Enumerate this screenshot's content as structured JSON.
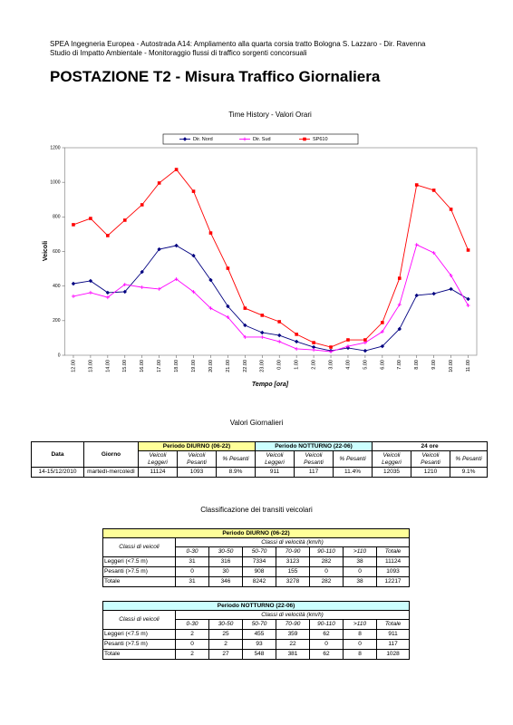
{
  "header": {
    "line1": "SPEA Ingegneria Europea - Autostrada A14: Ampliamento alla quarta corsia tratto Bologna S. Lazzaro - Dir. Ravenna",
    "line2": "Studio di Impatto Ambientale - Monitoraggio flussi di traffico sorgenti concorsuali",
    "title": "POSTAZIONE T2 - Misura Traffico Giornaliera"
  },
  "chart_data": {
    "type": "line",
    "title": "Time History - Valori Orari",
    "ylabel": "Veicoli",
    "xlabel": "Tempo [ora]",
    "categories": [
      "12.00",
      "13.00",
      "14.00",
      "15.00",
      "16.00",
      "17.00",
      "18.00",
      "19.00",
      "20.00",
      "21.00",
      "22.00",
      "23.00",
      "0.00",
      "1.00",
      "2.00",
      "3.00",
      "4.00",
      "5.00",
      "6.00",
      "7.00",
      "8.00",
      "9.00",
      "10.00",
      "11.00"
    ],
    "ylim": [
      0,
      1200
    ],
    "yticks": [
      0,
      200,
      400,
      600,
      800,
      1000,
      1200
    ],
    "series": [
      {
        "name": "Dir. Nord",
        "color": "#000080",
        "marker": "diamond",
        "values": [
          414,
          430,
          362,
          367,
          482,
          613,
          634,
          576,
          435,
          283,
          173,
          131,
          115,
          79,
          47,
          26,
          42,
          26,
          52,
          152,
          346,
          356,
          383,
          325
        ]
      },
      {
        "name": "Dir. Sud",
        "color": "#ff00ff",
        "marker": "cross",
        "values": [
          341,
          362,
          335,
          409,
          393,
          383,
          440,
          367,
          272,
          220,
          105,
          105,
          79,
          37,
          31,
          21,
          52,
          73,
          136,
          293,
          639,
          592,
          461,
          288
        ]
      },
      {
        "name": "SP610",
        "color": "#ff0000",
        "marker": "square",
        "values": [
          755,
          791,
          692,
          781,
          870,
          996,
          1074,
          948,
          707,
          503,
          272,
          231,
          194,
          121,
          73,
          47,
          89,
          89,
          189,
          445,
          985,
          954,
          844,
          608
        ]
      }
    ]
  },
  "daily": {
    "title": "Valori Giornalieri",
    "columns": [
      "Data",
      "Giorno"
    ],
    "periods": [
      "Periodo DIURNO (06-22)",
      "Periodo NOTTURNO (22-06)",
      "24 ore"
    ],
    "subcolumns": [
      "Veicoli Leggeri",
      "Veicoli Pesanti",
      "% Pesanti",
      "Veicoli Leggeri",
      "Veicoli Pesanti",
      "% Pesanti",
      "Veicoli Leggeri",
      "Veicoli Pesanti",
      "% Pesanti"
    ],
    "rows": [
      [
        "14-15/12/2010",
        "martedì-mercoledì",
        11124,
        1093,
        "8.9%",
        911,
        117,
        "11.4%",
        12035,
        1210,
        "9.1%"
      ]
    ]
  },
  "classification": {
    "title": "Classificazione dei transiti veicolari",
    "tables": [
      {
        "title": "Periodo DIURNO (06-22)",
        "row_header": "Classi di veicoli",
        "speed_header": "Classi di velocità (km/h)",
        "columns": [
          "0-30",
          "30-50",
          "50-70",
          "70-90",
          "90-110",
          ">110",
          "Totale"
        ],
        "rows": [
          {
            "label": "Leggeri (<7.5 m)",
            "values": [
              31,
              316,
              7334,
              3123,
              282,
              38,
              11124
            ]
          },
          {
            "label": "Pesanti (>7.5 m)",
            "values": [
              0,
              30,
              908,
              155,
              0,
              0,
              1093
            ]
          },
          {
            "label": "Totale",
            "values": [
              31,
              346,
              8242,
              3278,
              282,
              38,
              12217
            ]
          }
        ]
      },
      {
        "title": "Periodo NOTTURNO (22-06)",
        "row_header": "Classi di veicoli",
        "speed_header": "Classi di velocità (km/h)",
        "columns": [
          "0-30",
          "30-50",
          "50-70",
          "70-90",
          "90-110",
          ">110",
          "Totale"
        ],
        "rows": [
          {
            "label": "Leggeri (<7.5 m)",
            "values": [
              2,
              25,
              455,
              359,
              62,
              8,
              911
            ]
          },
          {
            "label": "Pesanti (>7.5 m)",
            "values": [
              0,
              2,
              93,
              22,
              0,
              0,
              117
            ]
          },
          {
            "label": "Totale",
            "values": [
              2,
              27,
              548,
              381,
              62,
              8,
              1028
            ]
          }
        ]
      }
    ]
  }
}
